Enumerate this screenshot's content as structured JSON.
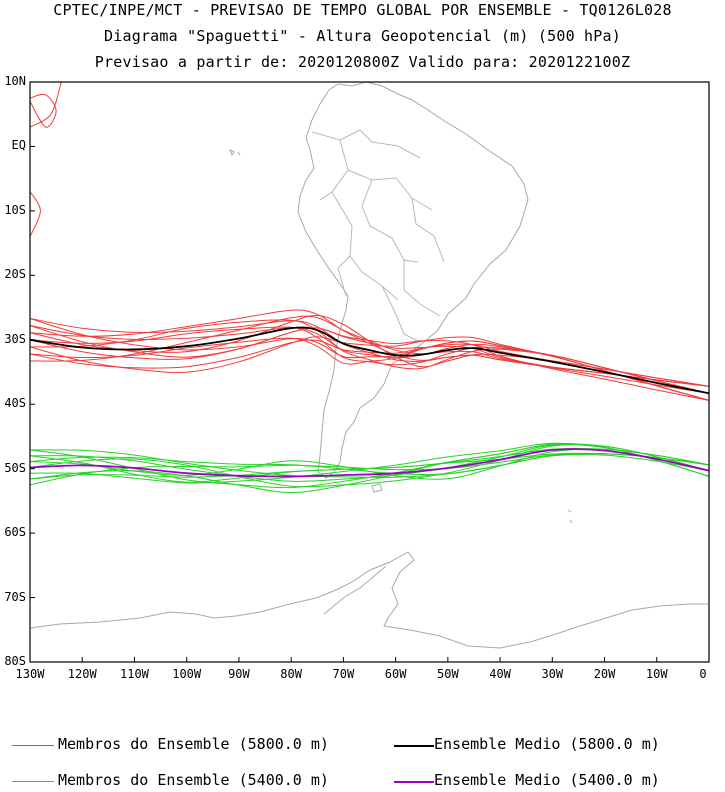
{
  "header": {
    "line1": "CPTEC/INPE/MCT - PREVISAO DE TEMPO GLOBAL POR ENSEMBLE - TQ0126L028",
    "line2": "Diagrama \"Spaguetti\" - Altura Geopotencial (m) (500 hPa)",
    "line3": "Previsao a partir de: 2020120800Z  Valido para: 2020122100Z"
  },
  "axes": {
    "lat_labels": [
      "10N",
      "EQ",
      "10S",
      "20S",
      "30S",
      "40S",
      "50S",
      "60S",
      "70S",
      "80S"
    ],
    "lon_labels": [
      "130W",
      "120W",
      "110W",
      "100W",
      "90W",
      "80W",
      "70W",
      "60W",
      "50W",
      "40W",
      "30W",
      "20W",
      "10W",
      "0"
    ]
  },
  "legend": {
    "red_members": "Membros do Ensemble (5800.0 m)",
    "black_mean": "Ensemble Medio (5800.0 m)",
    "green_members": "Membros do Ensemble (5400.0 m)",
    "purple_mean": "Ensemble Medio (5400.0 m)"
  },
  "colors": {
    "red": "#f03c3c",
    "green": "#28d228",
    "black": "#000000",
    "purple": "#a000c8",
    "map": "#a8a8a8"
  },
  "contours": {
    "mean_5800": [
      [
        -130,
        -30
      ],
      [
        -120,
        -31.2
      ],
      [
        -110,
        -31.5
      ],
      [
        -100,
        -31.0
      ],
      [
        -90,
        -29.8
      ],
      [
        -80,
        -28.2
      ],
      [
        -75,
        -28.5
      ],
      [
        -70,
        -30.6
      ],
      [
        -65,
        -31.6
      ],
      [
        -60,
        -32.4
      ],
      [
        -55,
        -32.3
      ],
      [
        -50,
        -31.6
      ],
      [
        -45,
        -31.3
      ],
      [
        -40,
        -32.0
      ],
      [
        -30,
        -33.4
      ],
      [
        -20,
        -35.0
      ],
      [
        -10,
        -36.7
      ],
      [
        0,
        -38.3
      ]
    ],
    "mean_5400": [
      [
        -130,
        -49.8
      ],
      [
        -120,
        -49.5
      ],
      [
        -110,
        -49.9
      ],
      [
        -100,
        -50.7
      ],
      [
        -90,
        -51.1
      ],
      [
        -80,
        -51.2
      ],
      [
        -70,
        -51.0
      ],
      [
        -60,
        -50.7
      ],
      [
        -50,
        -49.9
      ],
      [
        -40,
        -48.6
      ],
      [
        -30,
        -47.1
      ],
      [
        -20,
        -47.2
      ],
      [
        -10,
        -48.5
      ],
      [
        0,
        -50.3
      ]
    ],
    "members_5800_offsets": [
      [
        0,
        0,
        0,
        0,
        0,
        0
      ],
      [
        2,
        1,
        -1,
        0,
        1,
        -1
      ],
      [
        -2,
        -3,
        -1,
        1,
        0,
        1
      ],
      [
        1,
        3,
        2,
        -1,
        -1,
        0
      ],
      [
        3,
        -1,
        -2,
        1,
        1,
        -1
      ],
      [
        -3,
        1,
        2,
        0,
        -1,
        1
      ],
      [
        0,
        2,
        -2,
        -1,
        1,
        0
      ],
      [
        2,
        -2,
        1,
        1,
        -1,
        1
      ],
      [
        -1,
        -4,
        0,
        2,
        1,
        -1
      ],
      [
        1,
        -1,
        3,
        -2,
        0,
        1
      ],
      [
        -2,
        0,
        -3,
        1,
        1,
        0
      ],
      [
        3,
        2,
        0,
        -1,
        -1,
        1
      ],
      [
        0,
        -2,
        1,
        2,
        -1,
        -1
      ],
      [
        -1,
        3,
        -1,
        -2,
        1,
        0
      ]
    ],
    "members_5400_offsets": [
      [
        0,
        0,
        0,
        0,
        0,
        0
      ],
      [
        2,
        1,
        -1,
        0,
        1,
        -1
      ],
      [
        -2,
        -1,
        1,
        1,
        0,
        1
      ],
      [
        1,
        2,
        2,
        -1,
        -1,
        0
      ],
      [
        3,
        -1,
        -2,
        1,
        1,
        -1
      ],
      [
        -3,
        1,
        2,
        0,
        -1,
        1
      ],
      [
        0,
        2,
        -2,
        -1,
        1,
        0
      ],
      [
        2,
        -2,
        1,
        1,
        -1,
        1
      ],
      [
        -1,
        -2,
        0,
        2,
        1,
        -1
      ],
      [
        1,
        -1,
        3,
        -2,
        0,
        1
      ],
      [
        -2,
        0,
        -3,
        1,
        1,
        0
      ],
      [
        3,
        2,
        0,
        -1,
        -1,
        1
      ]
    ],
    "small_red_loops": [
      [
        [
          -130,
          7
        ],
        [
          -127,
          3
        ],
        [
          -125,
          5.5
        ],
        [
          -127,
          8
        ],
        [
          -130,
          7.5
        ]
      ],
      [
        [
          -130,
          -7
        ],
        [
          -128,
          -10
        ],
        [
          -130,
          -14
        ]
      ],
      [
        [
          -124,
          10
        ],
        [
          -126,
          5
        ],
        [
          -130,
          3
        ]
      ]
    ]
  },
  "extent": {
    "lon_min": -130,
    "lon_max": 0,
    "lat_min": -80,
    "lat_max": 10
  }
}
